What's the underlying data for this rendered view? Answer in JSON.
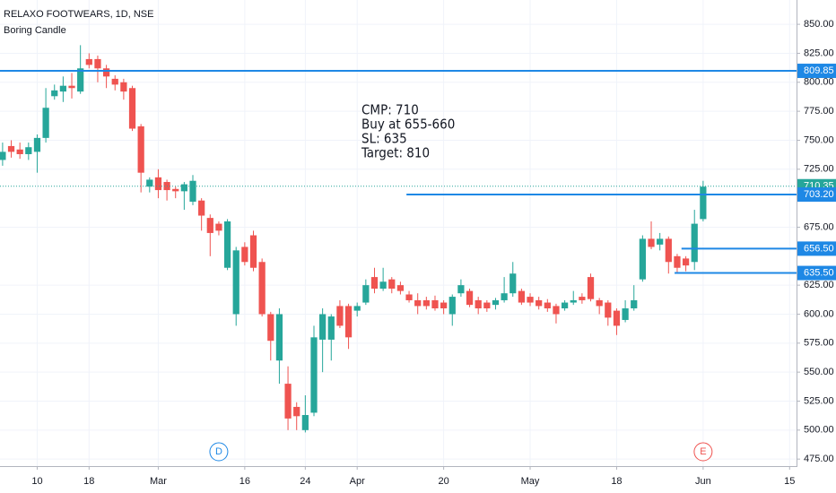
{
  "chart_data": {
    "type": "candlestick",
    "title": "RELAXO FOOTWEARS, 1D, NSE",
    "subtitle": "Boring Candle",
    "annotation": [
      "CMP: 710",
      "Buy at 655-660",
      "SL: 635",
      "Target: 810"
    ],
    "open": [
      733,
      745,
      742,
      738,
      740,
      752,
      788,
      792,
      797,
      792,
      820,
      820,
      812,
      803,
      800,
      795,
      762,
      710,
      718,
      714,
      708,
      706,
      697,
      698,
      683,
      678,
      640,
      600,
      658,
      668,
      645,
      600,
      560,
      540,
      520,
      500,
      515,
      578,
      578,
      607,
      607,
      603,
      610,
      632,
      622,
      630,
      625,
      617,
      612,
      612,
      612,
      610,
      600,
      618,
      620,
      612,
      610,
      608,
      612,
      618,
      620,
      615,
      612,
      610,
      607,
      605,
      610,
      615,
      632,
      612,
      610,
      603,
      595,
      605,
      630,
      665,
      660,
      665,
      650,
      648,
      645,
      682
    ],
    "high": [
      748,
      750,
      748,
      748,
      755,
      795,
      798,
      805,
      808,
      832,
      825,
      823,
      815,
      806,
      803,
      797,
      764,
      718,
      725,
      716,
      710,
      714,
      720,
      700,
      686,
      680,
      682,
      658,
      662,
      672,
      648,
      602,
      605,
      555,
      524,
      530,
      590,
      605,
      600,
      612,
      609,
      610,
      630,
      640,
      640,
      632,
      628,
      620,
      618,
      615,
      616,
      612,
      617,
      630,
      622,
      615,
      612,
      614,
      632,
      645,
      622,
      618,
      615,
      613,
      609,
      612,
      620,
      618,
      635,
      614,
      612,
      605,
      612,
      625,
      668,
      680,
      670,
      667,
      652,
      650,
      690,
      715
    ],
    "low": [
      728,
      735,
      734,
      733,
      722,
      748,
      785,
      783,
      786,
      790,
      812,
      800,
      795,
      793,
      785,
      758,
      705,
      705,
      700,
      698,
      700,
      690,
      694,
      672,
      650,
      668,
      638,
      590,
      642,
      637,
      598,
      560,
      540,
      500,
      500,
      498,
      512,
      550,
      560,
      588,
      570,
      598,
      608,
      618,
      620,
      618,
      617,
      610,
      600,
      604,
      603,
      600,
      590,
      615,
      606,
      600,
      602,
      604,
      610,
      615,
      608,
      607,
      604,
      602,
      592,
      603,
      608,
      609,
      611,
      600,
      590,
      582,
      593,
      603,
      628,
      656,
      655,
      635,
      635,
      637,
      638,
      680
    ],
    "close": [
      740,
      740,
      738,
      744,
      752,
      778,
      793,
      797,
      795,
      812,
      815,
      812,
      805,
      798,
      792,
      760,
      722,
      716,
      707,
      707,
      706,
      712,
      715,
      685,
      670,
      672,
      680,
      655,
      645,
      640,
      600,
      577,
      600,
      510,
      512,
      513,
      580,
      600,
      598,
      590,
      580,
      607,
      625,
      622,
      628,
      622,
      620,
      612,
      607,
      607,
      605,
      605,
      615,
      625,
      608,
      605,
      605,
      612,
      618,
      635,
      610,
      610,
      607,
      605,
      600,
      610,
      612,
      612,
      613,
      607,
      597,
      590,
      605,
      612,
      665,
      658,
      665,
      645,
      640,
      642,
      678,
      710
    ],
    "up_color": "#26a69a",
    "down_color": "#ef5350",
    "xlim": [
      -0.3,
      91.8
    ],
    "xticks": [
      {
        "value": 4,
        "label": "10"
      },
      {
        "value": 10,
        "label": "18"
      },
      {
        "value": 18,
        "label": "Mar"
      },
      {
        "value": 28,
        "label": "16"
      },
      {
        "value": 35,
        "label": "24"
      },
      {
        "value": 41,
        "label": "Apr"
      },
      {
        "value": 51,
        "label": "20"
      },
      {
        "value": 61,
        "label": "May"
      },
      {
        "value": 71,
        "label": "18"
      },
      {
        "value": 81,
        "label": "Jun"
      },
      {
        "value": 91,
        "label": "15"
      }
    ],
    "ylim": [
      468.94,
      870.96
    ],
    "yticks": [
      {
        "value": 850,
        "label": "850.00"
      },
      {
        "value": 825,
        "label": "825.00"
      },
      {
        "value": 800,
        "label": "800.00"
      },
      {
        "value": 775,
        "label": "775.00"
      },
      {
        "value": 750,
        "label": "750.00"
      },
      {
        "value": 725,
        "label": "725.00"
      },
      {
        "value": 675,
        "label": "675.00"
      },
      {
        "value": 625,
        "label": "625.00"
      },
      {
        "value": 600,
        "label": "600.00"
      },
      {
        "value": 575,
        "label": "575.00"
      },
      {
        "value": 550,
        "label": "550.00"
      },
      {
        "value": 525,
        "label": "525.00"
      },
      {
        "value": 500,
        "label": "500.00"
      },
      {
        "value": 475,
        "label": "475.00"
      }
    ],
    "grid": true,
    "levels": {
      "values": [
        809.85,
        703.2,
        656.5,
        635.5
      ],
      "value_labels": [
        "809.85",
        "703.20",
        "656.50",
        "635.50"
      ],
      "from": [
        -0.3,
        46.7,
        78.5,
        77.7
      ],
      "color": "#1e88e5"
    },
    "last_price": {
      "value": 710.35,
      "label": "710.35",
      "color": "#26a69a"
    },
    "events": [
      {
        "label": "D",
        "x": 25,
        "color": "#1e88e5"
      },
      {
        "label": "E",
        "x": 81,
        "color": "#ef5350"
      }
    ]
  }
}
